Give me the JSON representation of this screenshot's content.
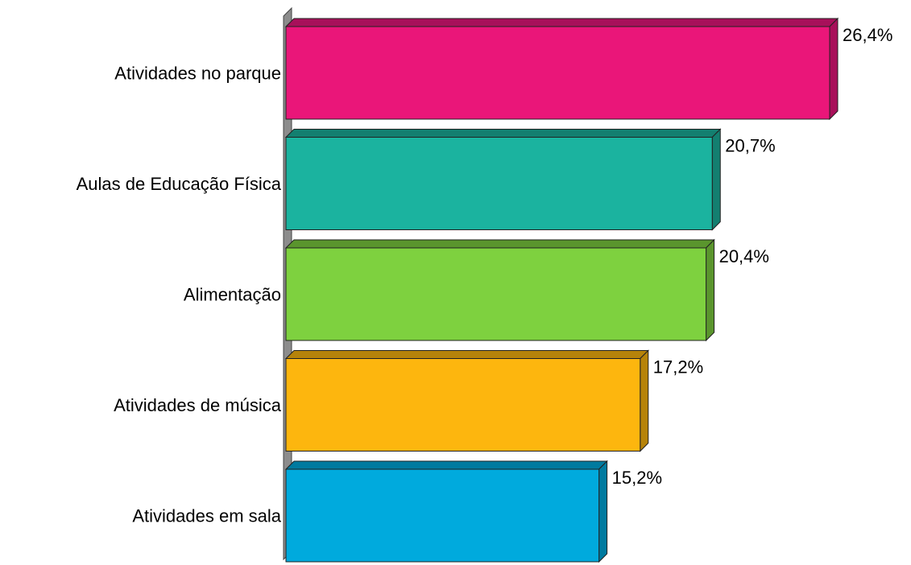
{
  "chart_data": {
    "type": "bar3d_horizontal",
    "categories": [
      "Atividades no parque",
      "Aulas de Educação Física",
      "Alimentação",
      "Atividades de música",
      "Atividades em sala"
    ],
    "series": [
      {
        "values": [
          26.4,
          20.7,
          20.4,
          17.2,
          15.2
        ],
        "value_labels": [
          "26,4%",
          "20,7%",
          "20,4%",
          "17,2%",
          "15,2%"
        ],
        "colors": [
          "#ea1679",
          "#1bb39f",
          "#7ed13f",
          "#fdb60e",
          "#00aadd"
        ],
        "side_colors": [
          "#a8105a",
          "#137f70",
          "#5a952d",
          "#b6830a",
          "#007a9f"
        ]
      }
    ]
  }
}
